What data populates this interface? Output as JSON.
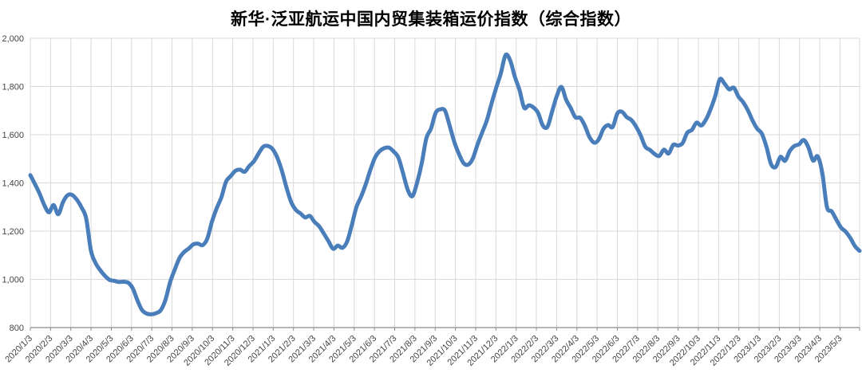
{
  "chart_data": {
    "type": "line",
    "title": "新华·泛亚航运中国内贸集装箱运价指数（综合指数）",
    "xlabel": "",
    "ylabel": "",
    "frequency": "weekly",
    "legend_position": "none",
    "grid": true,
    "ylim": [
      800,
      2000
    ],
    "y_ticks": [
      800,
      1000,
      1200,
      1400,
      1600,
      1800,
      2000
    ],
    "y_tick_labels": [
      "800",
      "1,000",
      "1,200",
      "1,400",
      "1,600",
      "1,800",
      "2,000"
    ],
    "x_tick_labels": [
      "2020/1/3",
      "2020/2/3",
      "2020/3/3",
      "2020/4/3",
      "2020/5/3",
      "2020/6/3",
      "2020/7/3",
      "2020/8/3",
      "2020/9/3",
      "2020/10/3",
      "2020/11/3",
      "2020/12/3",
      "2021/1/3",
      "2021/2/3",
      "2021/3/3",
      "2021/4/3",
      "2021/5/3",
      "2021/6/3",
      "2021/7/3",
      "2021/8/3",
      "2021/9/3",
      "2021/10/3",
      "2021/11/3",
      "2021/12/3",
      "2022/1/3",
      "2022/2/3",
      "2022/3/3",
      "2022/4/3",
      "2022/5/3",
      "2022/6/3",
      "2022/7/3",
      "2022/8/3",
      "2022/9/3",
      "2022/10/3",
      "2022/11/3",
      "2022/12/3",
      "2023/1/3",
      "2023/2/3",
      "2023/3/3",
      "2023/4/3",
      "2023/5/3"
    ],
    "x_tick_step_weeks": 4.345,
    "values": [
      1432,
      1395,
      1355,
      1308,
      1278,
      1308,
      1270,
      1320,
      1349,
      1350,
      1330,
      1298,
      1252,
      1120,
      1068,
      1038,
      1015,
      998,
      994,
      989,
      990,
      986,
      962,
      912,
      872,
      858,
      855,
      860,
      872,
      915,
      988,
      1040,
      1088,
      1113,
      1128,
      1145,
      1148,
      1142,
      1170,
      1240,
      1295,
      1340,
      1405,
      1428,
      1450,
      1455,
      1446,
      1470,
      1490,
      1522,
      1550,
      1553,
      1540,
      1505,
      1450,
      1380,
      1320,
      1288,
      1273,
      1257,
      1263,
      1238,
      1220,
      1190,
      1158,
      1127,
      1140,
      1131,
      1157,
      1225,
      1300,
      1343,
      1395,
      1455,
      1505,
      1532,
      1544,
      1546,
      1530,
      1505,
      1440,
      1372,
      1345,
      1400,
      1480,
      1585,
      1625,
      1690,
      1705,
      1700,
      1638,
      1570,
      1520,
      1482,
      1476,
      1502,
      1560,
      1610,
      1660,
      1730,
      1795,
      1855,
      1930,
      1908,
      1840,
      1785,
      1712,
      1722,
      1713,
      1690,
      1638,
      1633,
      1697,
      1760,
      1798,
      1745,
      1710,
      1672,
      1670,
      1638,
      1591,
      1567,
      1580,
      1624,
      1640,
      1632,
      1688,
      1695,
      1673,
      1661,
      1634,
      1597,
      1550,
      1537,
      1520,
      1512,
      1538,
      1522,
      1558,
      1555,
      1565,
      1608,
      1620,
      1650,
      1638,
      1662,
      1705,
      1760,
      1830,
      1812,
      1788,
      1795,
      1758,
      1735,
      1702,
      1660,
      1625,
      1605,
      1550,
      1478,
      1466,
      1508,
      1492,
      1532,
      1553,
      1560,
      1578,
      1548,
      1493,
      1510,
      1440,
      1300,
      1282,
      1248,
      1215,
      1198,
      1172,
      1138,
      1118
    ],
    "colors": {
      "line": "#4a7ebb",
      "grid": "#d9d9d9",
      "axis": "#8c8c8c",
      "tick_label": "#444444",
      "title": "#000000",
      "background": "#ffffff"
    }
  }
}
